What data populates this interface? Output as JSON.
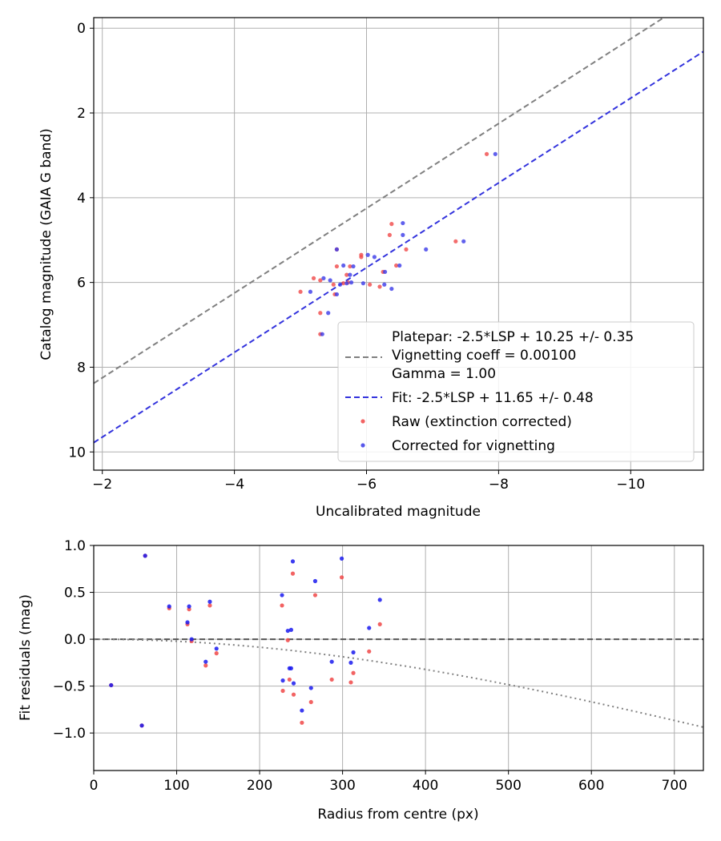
{
  "chart_data": [
    {
      "type": "scatter",
      "title": "",
      "xlabel": "Uncalibrated magnitude",
      "ylabel": "Catalog magnitude (GAIA G band)",
      "xlim": [
        -1.87,
        -11.1
      ],
      "ylim": [
        10.43,
        -0.25
      ],
      "x_inverted": true,
      "y_inverted": true,
      "grid": true,
      "xticks": [
        -2,
        -4,
        -6,
        -8,
        -10
      ],
      "xtick_labels": [
        "−2",
        "−4",
        "−6",
        "−8",
        "−10"
      ],
      "yticks": [
        0,
        2,
        4,
        6,
        8,
        10
      ],
      "ytick_labels": [
        "0",
        "2",
        "4",
        "6",
        "8",
        "10"
      ],
      "legend_position": "lower-right",
      "legend": {
        "line1": "Platepar: -2.5*LSP + 10.25 +/- 0.35",
        "line2": "Vignetting coeff = 0.00100",
        "line3": "Gamma = 1.00",
        "fit": "Fit: -2.5*LSP + 11.65 +/- 0.48",
        "raw": "Raw (extinction corrected)",
        "corrected": "Corrected for vignetting"
      },
      "lines": [
        {
          "name": "Platepar",
          "slope": -2.5,
          "intercept": 10.25,
          "color": "#808080",
          "style": "dashed"
        },
        {
          "name": "Fit",
          "slope": -2.5,
          "intercept": 11.65,
          "color": "#3333dd",
          "style": "dashed"
        }
      ],
      "series": [
        {
          "name": "Raw (extinction corrected)",
          "color": "#f04848",
          "points": [
            [
              -7.82,
              2.97
            ],
            [
              -6.38,
              4.62
            ],
            [
              -6.35,
              4.88
            ],
            [
              -6.6,
              5.22
            ],
            [
              -6.45,
              5.6
            ],
            [
              -7.35,
              5.03
            ],
            [
              -5.55,
              5.22
            ],
            [
              -5.92,
              5.35
            ],
            [
              -5.75,
              5.62
            ],
            [
              -5.7,
              5.82
            ],
            [
              -5.55,
              5.62
            ],
            [
              -5.92,
              5.4
            ],
            [
              -6.25,
              5.75
            ],
            [
              -6.05,
              6.05
            ],
            [
              -6.2,
              6.1
            ],
            [
              -5.2,
              5.9
            ],
            [
              -5.3,
              5.95
            ],
            [
              -5.5,
              6.05
            ],
            [
              -5.65,
              6.02
            ],
            [
              -5.72,
              6.0
            ],
            [
              -5.0,
              6.22
            ],
            [
              -5.52,
              6.28
            ],
            [
              -5.3,
              6.72
            ],
            [
              -5.3,
              7.22
            ]
          ]
        },
        {
          "name": "Corrected for vignetting",
          "color": "#3a3ae8",
          "points": [
            [
              -7.95,
              2.97
            ],
            [
              -6.55,
              4.6
            ],
            [
              -6.55,
              4.88
            ],
            [
              -6.9,
              5.22
            ],
            [
              -6.5,
              5.6
            ],
            [
              -7.47,
              5.03
            ],
            [
              -5.55,
              5.22
            ],
            [
              -6.02,
              5.35
            ],
            [
              -5.8,
              5.62
            ],
            [
              -5.75,
              5.82
            ],
            [
              -5.65,
              5.6
            ],
            [
              -6.12,
              5.4
            ],
            [
              -6.28,
              5.75
            ],
            [
              -6.27,
              6.05
            ],
            [
              -6.38,
              6.15
            ],
            [
              -5.35,
              5.9
            ],
            [
              -5.45,
              5.95
            ],
            [
              -5.6,
              6.05
            ],
            [
              -5.7,
              6.02
            ],
            [
              -5.77,
              6.0
            ],
            [
              -5.95,
              6.02
            ],
            [
              -5.15,
              6.22
            ],
            [
              -5.55,
              6.28
            ],
            [
              -5.42,
              6.72
            ],
            [
              -5.33,
              7.22
            ]
          ]
        }
      ]
    },
    {
      "type": "scatter",
      "title": "",
      "xlabel": "Radius from centre (px)",
      "ylabel": "Fit residuals (mag)",
      "xlim": [
        0,
        735
      ],
      "ylim": [
        -1.4,
        1.0
      ],
      "grid": true,
      "xticks": [
        0,
        100,
        200,
        300,
        400,
        500,
        600,
        700
      ],
      "xtick_labels": [
        "0",
        "100",
        "200",
        "300",
        "400",
        "500",
        "600",
        "700"
      ],
      "yticks": [
        1.0,
        0.5,
        0.0,
        -0.5,
        -1.0
      ],
      "ytick_labels": [
        "1.0",
        "0.5",
        "0.0",
        "−0.5",
        "−1.0"
      ],
      "reference_line": {
        "y": 0,
        "color": "#555555",
        "style": "dashed"
      },
      "vignetting_curve": {
        "coeff": 0.001,
        "gamma": 1.0,
        "color": "#808080",
        "style": "dotted"
      },
      "series": [
        {
          "name": "Raw (extinction corrected)",
          "color": "#f04848",
          "points": [
            [
              21,
              -0.49
            ],
            [
              58,
              -0.92
            ],
            [
              62,
              0.89
            ],
            [
              91,
              0.33
            ],
            [
              113,
              0.16
            ],
            [
              115,
              0.32
            ],
            [
              118,
              -0.02
            ],
            [
              135,
              -0.28
            ],
            [
              140,
              0.36
            ],
            [
              148,
              -0.15
            ],
            [
              227,
              0.36
            ],
            [
              228,
              -0.55
            ],
            [
              234,
              -0.01
            ],
            [
              236,
              -0.43
            ],
            [
              240,
              0.7
            ],
            [
              241,
              -0.59
            ],
            [
              251,
              -0.89
            ],
            [
              262,
              -0.67
            ],
            [
              267,
              0.47
            ],
            [
              287,
              -0.43
            ],
            [
              299,
              0.66
            ],
            [
              310,
              -0.46
            ],
            [
              313,
              -0.36
            ],
            [
              332,
              -0.13
            ],
            [
              345,
              0.16
            ]
          ]
        },
        {
          "name": "Corrected for vignetting",
          "color": "#1a1aee",
          "points": [
            [
              21,
              -0.49
            ],
            [
              58,
              -0.92
            ],
            [
              62,
              0.89
            ],
            [
              91,
              0.35
            ],
            [
              113,
              0.18
            ],
            [
              115,
              0.35
            ],
            [
              118,
              0.0
            ],
            [
              135,
              -0.24
            ],
            [
              140,
              0.4
            ],
            [
              148,
              -0.1
            ],
            [
              227,
              0.47
            ],
            [
              228,
              -0.44
            ],
            [
              234,
              0.09
            ],
            [
              236,
              -0.31
            ],
            [
              238,
              0.1
            ],
            [
              238,
              -0.31
            ],
            [
              240,
              0.83
            ],
            [
              241,
              -0.47
            ],
            [
              251,
              -0.76
            ],
            [
              262,
              -0.52
            ],
            [
              267,
              0.62
            ],
            [
              287,
              -0.24
            ],
            [
              299,
              0.86
            ],
            [
              310,
              -0.25
            ],
            [
              313,
              -0.14
            ],
            [
              332,
              0.12
            ],
            [
              345,
              0.42
            ]
          ]
        }
      ]
    }
  ]
}
